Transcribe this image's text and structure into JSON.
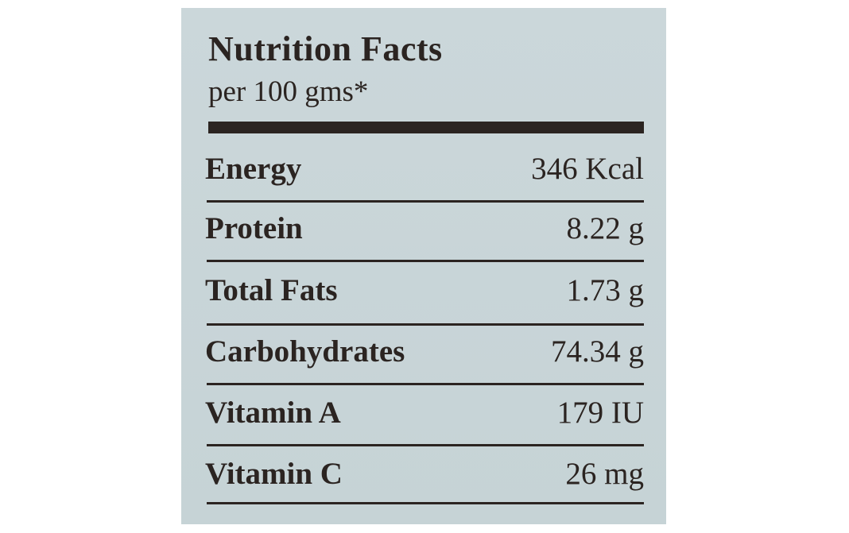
{
  "header": {
    "title": "Nutrition Facts",
    "subtitle": "per 100 gms*"
  },
  "table": {
    "rows": [
      [
        "Energy",
        "346 Kcal"
      ],
      [
        "Protein",
        "8.22 g"
      ],
      [
        "Total Fats",
        "1.73 g"
      ],
      [
        "Carbohydrates",
        "74.34 g"
      ],
      [
        "Vitamin A",
        "179 IU"
      ],
      [
        "Vitamin C",
        "26 mg"
      ]
    ]
  }
}
